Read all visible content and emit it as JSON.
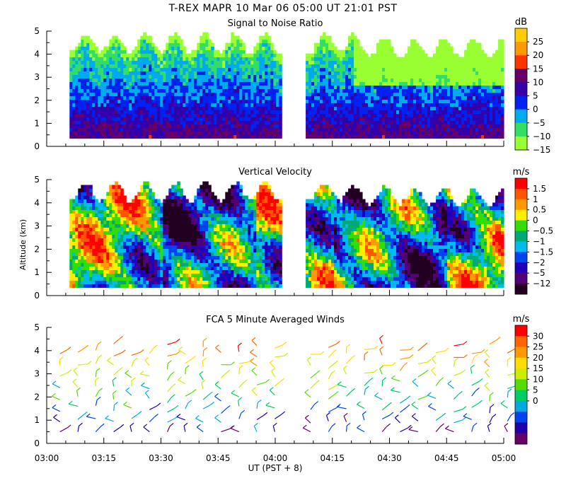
{
  "header": {
    "title": "T-REX   MAPR 10 Mar 06   05:00 UT   21:01   PST"
  },
  "chart_data": [
    {
      "type": "heatmap",
      "title": "Signal to Noise Ratio",
      "ylabel": "",
      "ylim": [
        0,
        5
      ],
      "yticks": [
        "0",
        "1",
        "2",
        "3",
        "4",
        "5"
      ],
      "colorbar_unit": "dB",
      "colorbar_labels": [
        "25",
        "20",
        "15",
        "10",
        "5",
        "0",
        "−5",
        "−10",
        "−15"
      ],
      "colors": [
        "#ffcc00",
        "#ff9900",
        "#ff3300",
        "#660066",
        "#3300aa",
        "#0022ee",
        "#00aaee",
        "#33dd66",
        "#99ff33"
      ],
      "xlim_minutes": [
        0,
        120
      ]
    },
    {
      "type": "heatmap",
      "title": "Vertical Velocity",
      "ylabel": "Altitude (km)",
      "ylim": [
        0,
        5
      ],
      "yticks": [
        "0",
        "1",
        "2",
        "3",
        "4",
        "5"
      ],
      "colorbar_unit": "m/s",
      "colorbar_labels": [
        "1.5",
        "1",
        "0.5",
        "0",
        "−0.5",
        "−1",
        "−1.5",
        "−2",
        "−5",
        "−12"
      ],
      "colors": [
        "#ff0000",
        "#ff5500",
        "#ff9900",
        "#ffee00",
        "#33dd00",
        "#00aa77",
        "#00bbee",
        "#0044ee",
        "#2200bb",
        "#550077",
        "#220022"
      ],
      "xlim_minutes": [
        0,
        120
      ]
    },
    {
      "type": "scatter",
      "title": "FCA 5 Minute Averaged Winds",
      "ylabel": "",
      "ylim": [
        0,
        5
      ],
      "yticks": [
        "0",
        "1",
        "2",
        "3",
        "4",
        "5"
      ],
      "colorbar_unit": "m/s",
      "colorbar_labels": [
        "30",
        "25",
        "20",
        "15",
        "10",
        "5",
        "0"
      ],
      "colors": [
        "#ff0000",
        "#ff6600",
        "#ff9900",
        "#ffdd00",
        "#ccee00",
        "#55dd00",
        "#00cc66",
        "#00aadd",
        "#0044ee",
        "#2200aa",
        "#660066"
      ],
      "xlim_minutes": [
        0,
        120
      ],
      "xticks": [
        "03:00",
        "03:15",
        "03:30",
        "03:45",
        "04:00",
        "04:15",
        "04:30",
        "04:45",
        "05:00"
      ],
      "xlabel": "UT  (PST + 8)"
    }
  ]
}
